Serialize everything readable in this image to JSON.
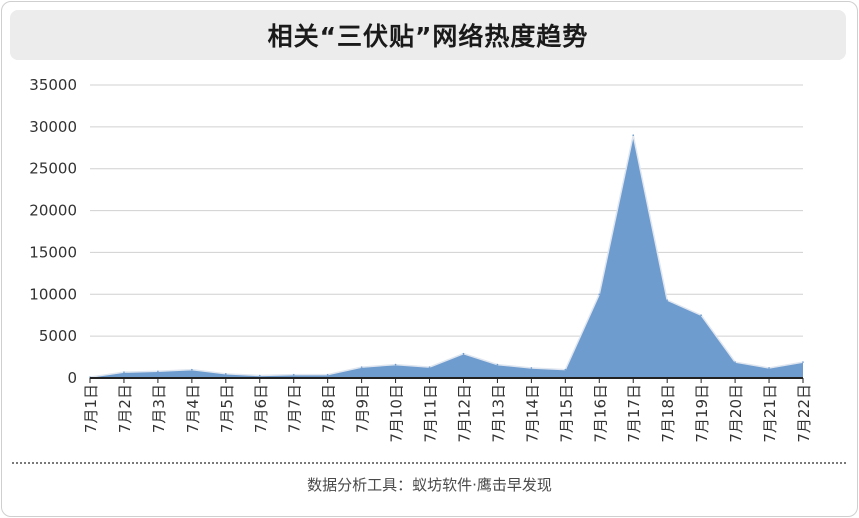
{
  "title": "相关“三伏贴”网络热度趋势",
  "footer": "数据分析工具：蚁坊软件·鹰击早发现",
  "colors": {
    "area_fill": "#6f9ccf",
    "area_stroke": "#dfe6ef",
    "grid": "#d0d0d0",
    "axis": "#222222"
  },
  "chart_data": {
    "type": "area",
    "title": "相关“三伏贴”网络热度趋势",
    "xlabel": "",
    "ylabel": "",
    "ylim": [
      0,
      35000
    ],
    "yticks": [
      0,
      5000,
      10000,
      15000,
      20000,
      25000,
      30000,
      35000
    ],
    "grid": true,
    "legend": "none",
    "categories": [
      "7月1日",
      "7月2日",
      "7月3日",
      "7月4日",
      "7月5日",
      "7月6日",
      "7月7日",
      "7月8日",
      "7月9日",
      "7月10日",
      "7月11日",
      "7月12日",
      "7月13日",
      "7月14日",
      "7月15日",
      "7月16日",
      "7月17日",
      "7月18日",
      "7月19日",
      "7月20日",
      "7月21日",
      "7月22日"
    ],
    "values": [
      100,
      700,
      800,
      1000,
      500,
      300,
      400,
      400,
      1300,
      1600,
      1300,
      2900,
      1600,
      1200,
      1000,
      10000,
      29000,
      9300,
      7500,
      1900,
      1200,
      1900
    ]
  }
}
